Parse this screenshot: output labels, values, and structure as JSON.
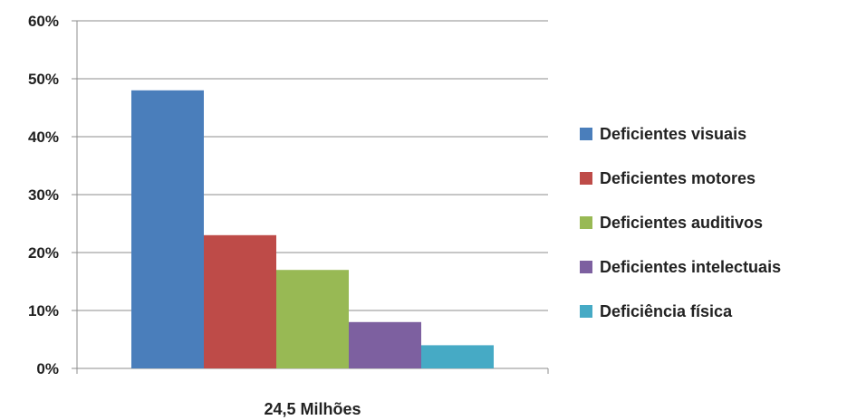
{
  "chart_data": {
    "type": "bar",
    "categories": [
      "24,5 Milhões"
    ],
    "series": [
      {
        "name": "Deficientes visuais",
        "values": [
          48
        ],
        "color": "#4a7ebb"
      },
      {
        "name": "Deficientes motores",
        "values": [
          23
        ],
        "color": "#be4b48"
      },
      {
        "name": "Deficientes auditivos",
        "values": [
          17
        ],
        "color": "#98b954"
      },
      {
        "name": "Deficientes intelectuais",
        "values": [
          8
        ],
        "color": "#7d60a0"
      },
      {
        "name": "Deficiência física",
        "values": [
          4
        ],
        "color": "#46aac5"
      }
    ],
    "y_ticks": [
      "0%",
      "10%",
      "20%",
      "30%",
      "40%",
      "50%",
      "60%"
    ],
    "ylim": [
      0,
      60
    ],
    "grid": true,
    "legend_position": "right"
  }
}
